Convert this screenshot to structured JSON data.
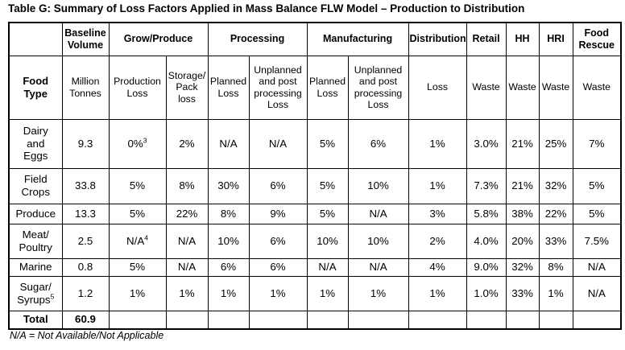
{
  "title": "Table G: Summary of Loss Factors Applied in Mass Balance FLW Model – Production to Distribution",
  "footnote": "N/A = Not Available/Not Applicable",
  "colors": {
    "border": "#000000",
    "text": "#000000",
    "background": "#ffffff"
  },
  "header": {
    "stages": [
      {
        "label": "",
        "colspan": 1
      },
      {
        "label": "Baseline\nVolume",
        "colspan": 1
      },
      {
        "label": "Grow/Produce",
        "colspan": 2
      },
      {
        "label": "Processing",
        "colspan": 2
      },
      {
        "label": "Manufacturing",
        "colspan": 2
      },
      {
        "label": "Distribution",
        "colspan": 1
      },
      {
        "label": "Retail",
        "colspan": 1
      },
      {
        "label": "HH",
        "colspan": 1
      },
      {
        "label": "HRI",
        "colspan": 1
      },
      {
        "label": "Food\nRescue",
        "colspan": 1
      }
    ],
    "measures": [
      {
        "label": "Food\nType"
      },
      {
        "label": "Million\nTonnes"
      },
      {
        "label": "Production\nLoss"
      },
      {
        "label": "Storage/\nPack\nloss"
      },
      {
        "label": "Planned\nLoss"
      },
      {
        "label": "Unplanned\nand post\nprocessing\nLoss"
      },
      {
        "label": "Planned\nLoss"
      },
      {
        "label": "Unplanned\nand post\nprocessing\nLoss"
      },
      {
        "label": "Loss"
      },
      {
        "label": "Waste"
      },
      {
        "label": "Waste"
      },
      {
        "label": "Waste"
      },
      {
        "label": "Waste"
      }
    ]
  },
  "rows": [
    {
      "cells": [
        {
          "text": "Dairy\nand\nEggs"
        },
        {
          "text": "9.3"
        },
        {
          "text": "0%",
          "sup": "3"
        },
        {
          "text": "2%"
        },
        {
          "text": "N/A"
        },
        {
          "text": "N/A"
        },
        {
          "text": "5%"
        },
        {
          "text": "6%"
        },
        {
          "text": "1%"
        },
        {
          "text": "3.0%"
        },
        {
          "text": "21%"
        },
        {
          "text": "25%"
        },
        {
          "text": "7%"
        }
      ]
    },
    {
      "cells": [
        {
          "text": "Field\nCrops"
        },
        {
          "text": "33.8"
        },
        {
          "text": "5%"
        },
        {
          "text": "8%"
        },
        {
          "text": "30%"
        },
        {
          "text": "6%"
        },
        {
          "text": "5%"
        },
        {
          "text": "10%"
        },
        {
          "text": "1%"
        },
        {
          "text": "7.3%"
        },
        {
          "text": "21%"
        },
        {
          "text": "32%"
        },
        {
          "text": "5%"
        }
      ]
    },
    {
      "cells": [
        {
          "text": "Produce"
        },
        {
          "text": "13.3"
        },
        {
          "text": "5%"
        },
        {
          "text": "22%"
        },
        {
          "text": "8%"
        },
        {
          "text": "9%"
        },
        {
          "text": "5%"
        },
        {
          "text": "N/A"
        },
        {
          "text": "3%"
        },
        {
          "text": "5.8%"
        },
        {
          "text": "38%"
        },
        {
          "text": "22%"
        },
        {
          "text": "5%"
        }
      ]
    },
    {
      "cells": [
        {
          "text": "Meat/\nPoultry"
        },
        {
          "text": "2.5"
        },
        {
          "text": "N/A",
          "sup": "4"
        },
        {
          "text": "N/A"
        },
        {
          "text": "10%"
        },
        {
          "text": "6%"
        },
        {
          "text": "10%"
        },
        {
          "text": "10%"
        },
        {
          "text": "2%"
        },
        {
          "text": "4.0%"
        },
        {
          "text": "20%"
        },
        {
          "text": "33%"
        },
        {
          "text": "7.5%"
        }
      ]
    },
    {
      "cells": [
        {
          "text": "Marine"
        },
        {
          "text": "0.8"
        },
        {
          "text": "5%"
        },
        {
          "text": "N/A"
        },
        {
          "text": "6%"
        },
        {
          "text": "6%"
        },
        {
          "text": "N/A"
        },
        {
          "text": "N/A"
        },
        {
          "text": "4%"
        },
        {
          "text": "9.0%"
        },
        {
          "text": "32%"
        },
        {
          "text": "8%"
        },
        {
          "text": "N/A"
        }
      ]
    },
    {
      "cells": [
        {
          "text": "Sugar/\nSyrups",
          "sup": "5"
        },
        {
          "text": "1.2"
        },
        {
          "text": "1%"
        },
        {
          "text": "1%"
        },
        {
          "text": "1%"
        },
        {
          "text": "1%"
        },
        {
          "text": "1%"
        },
        {
          "text": "1%"
        },
        {
          "text": "1%"
        },
        {
          "text": "1.0%"
        },
        {
          "text": "33%"
        },
        {
          "text": "1%"
        },
        {
          "text": "N/A"
        }
      ]
    },
    {
      "cells": [
        {
          "text": "Total"
        },
        {
          "text": "60.9"
        },
        {
          "text": ""
        },
        {
          "text": ""
        },
        {
          "text": ""
        },
        {
          "text": ""
        },
        {
          "text": ""
        },
        {
          "text": ""
        },
        {
          "text": ""
        },
        {
          "text": ""
        },
        {
          "text": ""
        },
        {
          "text": ""
        },
        {
          "text": ""
        }
      ]
    }
  ]
}
